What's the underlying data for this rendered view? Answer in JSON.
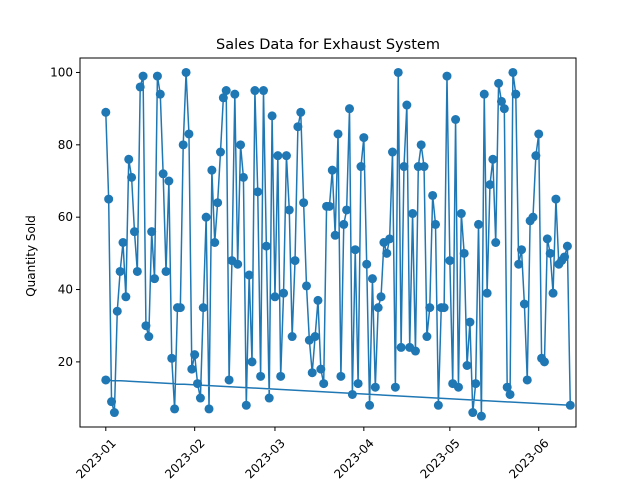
{
  "chart_data": {
    "type": "line",
    "title": "Sales Data for Exhaust System",
    "xlabel": "",
    "ylabel": "Quantity Sold",
    "line_color": "#1f77b4",
    "grid": false,
    "xlim": [
      "2022-12-23",
      "2023-06-14"
    ],
    "ylim": [
      2,
      104
    ],
    "x_ticks": [
      "2023-01",
      "2023-02",
      "2023-03",
      "2023-04",
      "2023-05",
      "2023-06"
    ],
    "x_tick_dates": [
      "2023-01-01",
      "2023-02-01",
      "2023-03-01",
      "2023-04-01",
      "2023-05-01",
      "2023-06-01"
    ],
    "y_ticks": [
      20,
      40,
      60,
      80,
      100
    ],
    "y_tick_labels": [
      "20",
      "40",
      "60",
      "80",
      "100"
    ],
    "series": [
      {
        "name": "",
        "x": [
          "2023-01-01",
          "2023-01-02",
          "2023-01-03",
          "2023-01-04",
          "2023-01-05",
          "2023-01-06",
          "2023-01-07",
          "2023-01-08",
          "2023-01-09",
          "2023-01-10",
          "2023-01-11",
          "2023-01-12",
          "2023-01-13",
          "2023-01-14",
          "2023-01-15",
          "2023-01-16",
          "2023-01-17",
          "2023-01-18",
          "2023-01-19",
          "2023-01-20",
          "2023-01-21",
          "2023-01-22",
          "2023-01-23",
          "2023-01-24",
          "2023-01-25",
          "2023-01-26",
          "2023-01-27",
          "2023-01-28",
          "2023-01-29",
          "2023-01-30",
          "2023-01-31",
          "2023-02-01",
          "2023-02-02",
          "2023-02-03",
          "2023-02-04",
          "2023-02-05",
          "2023-02-06",
          "2023-02-07",
          "2023-02-08",
          "2023-02-09",
          "2023-02-10",
          "2023-02-11",
          "2023-02-12",
          "2023-02-13",
          "2023-02-14",
          "2023-02-15",
          "2023-02-16",
          "2023-02-17",
          "2023-02-18",
          "2023-02-19",
          "2023-02-20",
          "2023-02-21",
          "2023-02-22",
          "2023-02-23",
          "2023-02-24",
          "2023-02-25",
          "2023-02-26",
          "2023-02-27",
          "2023-02-28",
          "2023-03-01",
          "2023-03-02",
          "2023-03-03",
          "2023-03-04",
          "2023-03-05",
          "2023-03-06",
          "2023-03-07",
          "2023-03-08",
          "2023-03-09",
          "2023-03-10",
          "2023-03-11",
          "2023-03-12",
          "2023-03-13",
          "2023-03-14",
          "2023-03-15",
          "2023-03-16",
          "2023-03-17",
          "2023-03-18",
          "2023-03-19",
          "2023-03-20",
          "2023-03-21",
          "2023-03-22",
          "2023-03-23",
          "2023-03-24",
          "2023-03-25",
          "2023-03-26",
          "2023-03-27",
          "2023-03-28",
          "2023-03-29",
          "2023-03-30",
          "2023-03-31",
          "2023-04-01",
          "2023-04-02",
          "2023-04-03",
          "2023-04-04",
          "2023-04-05",
          "2023-04-06",
          "2023-04-07",
          "2023-04-08",
          "2023-04-09",
          "2023-04-10",
          "2023-04-11",
          "2023-04-12",
          "2023-04-13",
          "2023-04-14",
          "2023-04-15",
          "2023-04-16",
          "2023-04-17",
          "2023-04-18",
          "2023-04-19",
          "2023-04-20",
          "2023-04-21",
          "2023-04-22",
          "2023-04-23",
          "2023-04-24",
          "2023-04-25",
          "2023-04-26",
          "2023-04-27",
          "2023-04-28",
          "2023-04-29",
          "2023-04-30",
          "2023-05-01",
          "2023-05-02",
          "2023-05-03",
          "2023-05-04",
          "2023-05-05",
          "2023-05-06",
          "2023-05-07",
          "2023-05-08",
          "2023-05-09",
          "2023-05-10",
          "2023-05-11",
          "2023-05-12",
          "2023-05-13",
          "2023-05-14",
          "2023-05-15",
          "2023-05-16",
          "2023-05-17",
          "2023-05-18",
          "2023-05-19",
          "2023-05-20",
          "2023-05-21",
          "2023-05-22",
          "2023-05-23",
          "2023-05-24",
          "2023-05-25",
          "2023-05-26",
          "2023-05-27",
          "2023-05-28",
          "2023-05-29",
          "2023-05-30",
          "2023-05-31",
          "2023-06-01",
          "2023-06-02",
          "2023-06-03",
          "2023-06-04",
          "2023-06-05",
          "2023-06-06",
          "2023-06-07",
          "2023-06-08",
          "2023-06-09",
          "2023-06-10",
          "2023-06-11",
          "2023-06-12",
          "2023-01-01"
        ],
        "y": [
          89,
          65,
          9,
          6,
          34,
          45,
          53,
          38,
          76,
          71,
          56,
          45,
          96,
          99,
          30,
          27,
          56,
          43,
          99,
          94,
          72,
          45,
          70,
          21,
          7,
          35,
          35,
          80,
          100,
          83,
          18,
          22,
          14,
          10,
          35,
          60,
          7,
          73,
          53,
          64,
          78,
          93,
          95,
          15,
          48,
          94,
          47,
          80,
          71,
          8,
          44,
          20,
          95,
          67,
          16,
          95,
          52,
          10,
          88,
          38,
          77,
          16,
          39,
          77,
          62,
          27,
          48,
          85,
          89,
          64,
          41,
          26,
          17,
          27,
          37,
          18,
          14,
          63,
          63,
          73,
          55,
          83,
          16,
          58,
          62,
          90,
          11,
          51,
          14,
          74,
          82,
          47,
          8,
          43,
          13,
          35,
          38,
          53,
          50,
          54,
          78,
          13,
          100,
          24,
          74,
          91,
          24,
          61,
          23,
          74,
          80,
          74,
          27,
          35,
          66,
          58,
          8,
          35,
          35,
          99,
          48,
          14,
          87,
          13,
          61,
          50,
          19,
          31,
          6,
          14,
          58,
          5,
          94,
          39,
          69,
          76,
          53,
          97,
          92,
          90,
          13,
          11,
          100,
          94,
          47,
          51,
          36,
          15,
          59,
          60,
          77,
          83,
          21,
          20,
          54,
          50,
          39,
          65,
          47,
          48,
          49,
          52,
          8,
          15
        ]
      }
    ]
  }
}
